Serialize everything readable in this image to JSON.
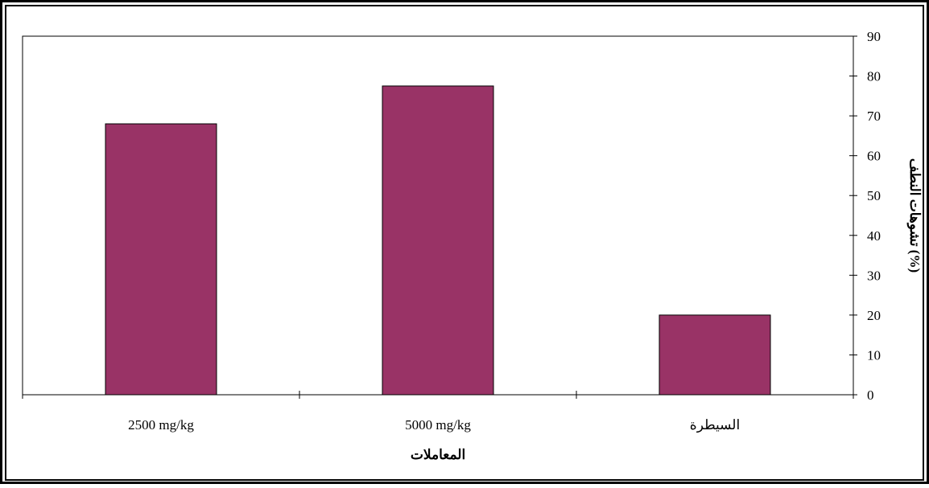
{
  "chart_data": {
    "type": "bar",
    "categories": [
      "2500 mg/kg",
      "5000 mg/kg",
      "السيطرة"
    ],
    "values": [
      68,
      77.5,
      20
    ],
    "title": "",
    "xlabel": "المعاملات",
    "ylabel": "تشوهات النطف (%)",
    "ylim": [
      0,
      90
    ],
    "yticks": [
      "0",
      "10",
      "20",
      "30",
      "40",
      "50",
      "60",
      "70",
      "80",
      "90"
    ],
    "y_axis_side": "right",
    "grid": false,
    "legend": "none",
    "bar_color": "#993366"
  }
}
